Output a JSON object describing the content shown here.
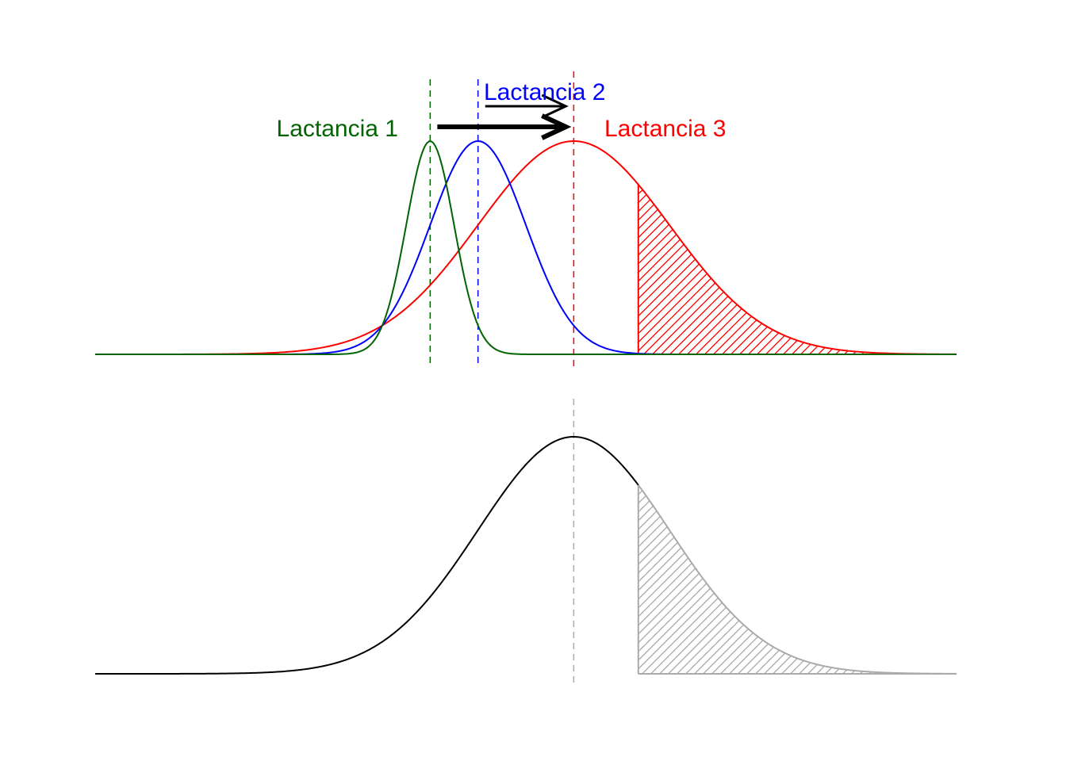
{
  "chart_data": [
    {
      "type": "line",
      "title": "",
      "xlabel": "",
      "ylabel": "",
      "axes_visible": false,
      "grid": false,
      "xlim": [
        -7,
        11
      ],
      "series": [
        {
          "name": "Lactancia 1",
          "color": "#006400",
          "mean": 0,
          "sd": 0.5,
          "peak": 1.0,
          "dashed_mean_line": true,
          "label_position": "left"
        },
        {
          "name": "Lactancia 2",
          "color": "#0000ff",
          "mean": 1,
          "sd": 1.0,
          "peak": 1.0,
          "dashed_mean_line": true,
          "label_position": "top"
        },
        {
          "name": "Lactancia 3",
          "color": "#ff0000",
          "mean": 3,
          "sd": 2.0,
          "peak": 1.0,
          "dashed_mean_line": true,
          "label_position": "right"
        }
      ],
      "shaded_region": {
        "series": "Lactancia 3",
        "from": 4.35,
        "to": 11,
        "pattern": "diagonal-hatch",
        "color": "#ff0000"
      },
      "arrows": [
        {
          "from": 0.15,
          "to": 3,
          "row": "upper",
          "weight": "thick"
        },
        {
          "from": 1.15,
          "to": 3,
          "row": "lower",
          "weight": "thin"
        }
      ]
    },
    {
      "type": "line",
      "title": "",
      "xlabel": "",
      "ylabel": "",
      "axes_visible": false,
      "grid": false,
      "xlim": [
        -7,
        11
      ],
      "series": [
        {
          "color": "#000000",
          "mean": 3,
          "sd": 2.0,
          "peak": 1.0,
          "dashed_mean_line": true,
          "dashed_color": "#aaaaaa"
        }
      ],
      "shaded_region": {
        "from": 4.35,
        "to": 11,
        "pattern": "diagonal-hatch",
        "color": "#aaaaaa"
      }
    }
  ]
}
